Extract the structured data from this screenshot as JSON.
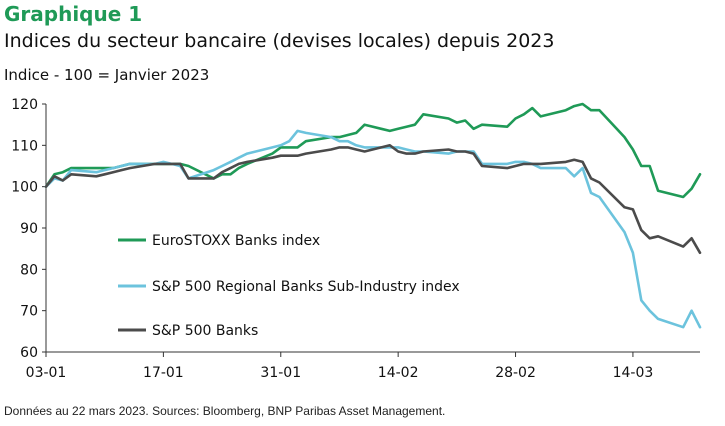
{
  "header": {
    "title": "Graphique 1",
    "subtitle": "Indices du secteur bancaire (devises locales) depuis 2023",
    "unit_note": "Indice - 100 = Janvier 2023"
  },
  "footer": {
    "source": "Données au 22 mars 2023. Sources: Bloomberg, BNP Paribas Asset Management."
  },
  "colors": {
    "eurostoxx": "#1f9a57",
    "regional": "#6cc3dd",
    "sp500": "#4b4b4b",
    "title": "#1f9a57"
  },
  "chart_data": {
    "type": "line",
    "title": "Indices du secteur bancaire (devises locales) depuis 2023",
    "ylabel": "Indice - 100 = Janvier 2023",
    "ylim": [
      60,
      120
    ],
    "yticks": [
      60,
      70,
      80,
      90,
      100,
      110,
      120
    ],
    "x_tick_labels": [
      "03-01",
      "17-01",
      "31-01",
      "14-02",
      "28-02",
      "14-03"
    ],
    "x_tick_days": [
      0,
      14,
      28,
      42,
      56,
      70
    ],
    "xlim": [
      0,
      78
    ],
    "grid": false,
    "legend_position": "lower-left",
    "x": [
      0,
      1,
      2,
      3,
      6,
      7,
      8,
      9,
      10,
      13,
      14,
      15,
      16,
      17,
      20,
      21,
      22,
      23,
      24,
      27,
      28,
      29,
      30,
      31,
      34,
      35,
      36,
      37,
      38,
      41,
      42,
      43,
      44,
      45,
      48,
      49,
      50,
      51,
      52,
      55,
      56,
      57,
      58,
      59,
      62,
      63,
      64,
      65,
      66,
      69,
      70,
      71,
      72,
      73,
      76,
      77,
      78
    ],
    "series": [
      {
        "name": "EuroSTOXX Banks index",
        "values": [
          100,
          103,
          103.5,
          104.5,
          104.5,
          104.5,
          104.5,
          105,
          105.5,
          105.5,
          105.5,
          105.5,
          105.5,
          105,
          102,
          103,
          103,
          104.5,
          105.5,
          108,
          109.5,
          109.5,
          109.5,
          111,
          112,
          112,
          112.5,
          113,
          115,
          113.5,
          114,
          114.5,
          115,
          117.5,
          116.5,
          115.5,
          116,
          114,
          115,
          114.5,
          116.5,
          117.5,
          119,
          117,
          118.5,
          119.5,
          120,
          118.5,
          118.5,
          112,
          109,
          105,
          105,
          99,
          97.5,
          99.5,
          103
        ]
      },
      {
        "name": "S&P 500 Regional Banks Sub-Industry index",
        "values": [
          100,
          102,
          101.5,
          104,
          103.5,
          104,
          104.5,
          105,
          105.5,
          105.5,
          106,
          105.5,
          105,
          102,
          104,
          105,
          106,
          107,
          108,
          109.5,
          110,
          111,
          113.5,
          113,
          112,
          111,
          111,
          110,
          109.5,
          109.5,
          109.5,
          109,
          108.5,
          108.5,
          108,
          108.5,
          108.5,
          108.5,
          105.5,
          105.5,
          106,
          106,
          105.5,
          104.5,
          104.5,
          102.5,
          104.5,
          98.5,
          97.5,
          89,
          84,
          72.5,
          70,
          68,
          66,
          70,
          66
        ]
      },
      {
        "name": "S&P 500 Banks",
        "values": [
          100,
          102.5,
          101.5,
          103,
          102.5,
          103,
          103.5,
          104,
          104.5,
          105.5,
          105.5,
          105.5,
          105.5,
          102,
          102,
          103.5,
          104.5,
          105.5,
          106,
          107,
          107.5,
          107.5,
          107.5,
          108,
          109,
          109.5,
          109.5,
          109,
          108.5,
          110,
          108.5,
          108,
          108,
          108.5,
          109,
          108.5,
          108.5,
          108,
          105,
          104.5,
          105,
          105.5,
          105.5,
          105.5,
          106,
          106.5,
          106,
          102,
          101,
          95,
          94.5,
          89.5,
          87.5,
          88,
          85.5,
          87.5,
          84
        ]
      }
    ]
  }
}
